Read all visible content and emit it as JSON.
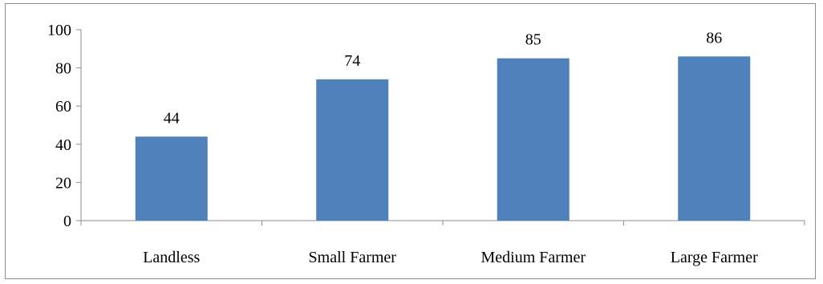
{
  "chart_data": {
    "type": "bar",
    "title": "",
    "xlabel": "",
    "ylabel": "",
    "categories": [
      "Landless",
      "Small Farmer",
      "Medium Farmer",
      "Large Farmer"
    ],
    "values": [
      44,
      74,
      85,
      86
    ],
    "data_labels": [
      "44",
      "74",
      "85",
      "86"
    ],
    "ylim": [
      0,
      100
    ],
    "yticks": [
      0,
      20,
      40,
      60,
      80,
      100
    ],
    "ytick_labels": [
      "0",
      "20",
      "40",
      "60",
      "80",
      "100"
    ],
    "grid": false,
    "legend": "none",
    "bar_color": "#4f81bd",
    "axis_color": "#8c8c8c"
  }
}
